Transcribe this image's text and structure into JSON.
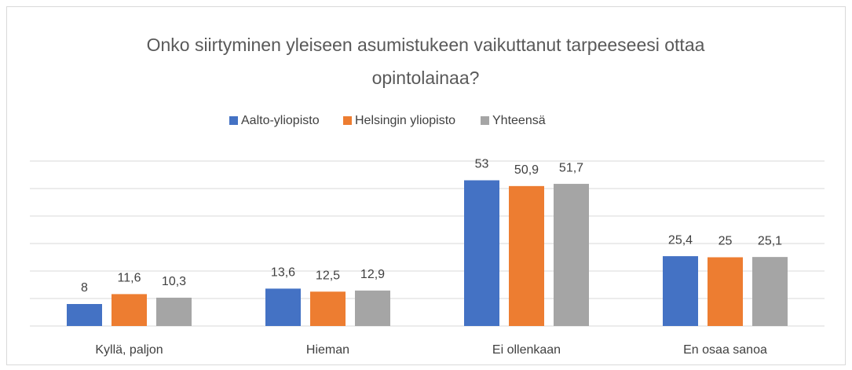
{
  "chart_data": {
    "type": "bar",
    "title": "Onko siirtyminen yleiseen asumistukeen vaikuttanut tarpeeseesi ottaa opintolainaa?",
    "categories": [
      "Kyllä, paljon",
      "Hieman",
      "Ei ollenkaan",
      "En osaa sanoa"
    ],
    "series": [
      {
        "name": "Aalto-yliopisto",
        "color": "#4472c4",
        "values": [
          8,
          13.6,
          53,
          25.4
        ],
        "value_labels": [
          "8",
          "13,6",
          "53",
          "25,4"
        ]
      },
      {
        "name": "Helsingin yliopisto",
        "color": "#ed7d31",
        "values": [
          11.6,
          12.5,
          50.9,
          25
        ],
        "value_labels": [
          "11,6",
          "12,5",
          "50,9",
          "25"
        ]
      },
      {
        "name": "Yhteensä",
        "color": "#a5a5a5",
        "values": [
          10.3,
          12.9,
          51.7,
          25.1
        ],
        "value_labels": [
          "10,3",
          "12,9",
          "51,7",
          "25,1"
        ]
      }
    ],
    "ylim": [
      0,
      60
    ],
    "yticks": [
      0,
      10,
      20,
      30,
      40,
      50,
      60
    ],
    "grid": true,
    "legend": "top"
  }
}
